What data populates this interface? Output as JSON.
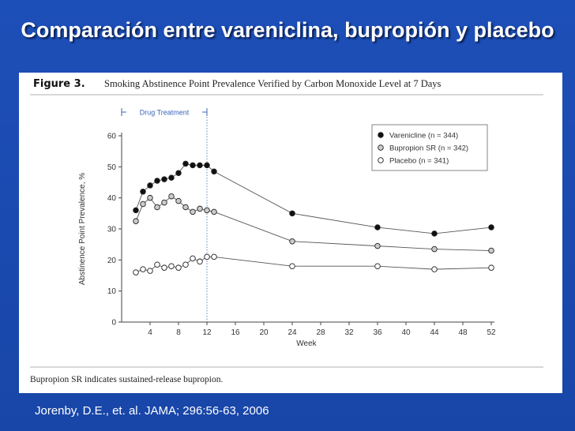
{
  "slide": {
    "title": "Comparación entre vareniclina, bupropión y placebo",
    "citation": "Jorenby, D.E., et. al.  JAMA; 296:56-63, 2006"
  },
  "figure": {
    "label": "Figure 3.",
    "footnote": "Bupropion SR indicates sustained-release bupropion."
  },
  "colors": {
    "slide_background": "#1a4bb0",
    "varenicline": "#111111",
    "bupropion": "#cccccc",
    "placebo": "#ffffff",
    "drug_treatment_annotation": "#3a66b8"
  },
  "chart_data": {
    "type": "line",
    "title": "Smoking Abstinence Point Prevalence Verified by Carbon Monoxide Level at 7 Days",
    "xlabel": "Week",
    "ylabel": "Abstinence Point Prevalence, %",
    "xlim": [
      0,
      52
    ],
    "ylim": [
      0,
      60
    ],
    "x_ticks": [
      4,
      8,
      12,
      16,
      20,
      24,
      28,
      32,
      36,
      40,
      44,
      48,
      52
    ],
    "y_ticks": [
      0,
      10,
      20,
      30,
      40,
      50,
      60
    ],
    "grid": false,
    "legend_position": "top-right",
    "annotation": {
      "label": "Drug Treatment",
      "x_start": 0,
      "x_end": 12
    },
    "series": [
      {
        "name": "Varenicline (n = 344)",
        "marker": "filled",
        "color": "#111111",
        "x": [
          2,
          3,
          4,
          5,
          6,
          7,
          8,
          9,
          10,
          11,
          12,
          13,
          24,
          36,
          44,
          52
        ],
        "y": [
          36,
          42,
          44,
          45.5,
          46,
          46.5,
          48,
          51,
          50.5,
          50.5,
          50.5,
          48.5,
          35,
          30.5,
          28.5,
          30.5
        ]
      },
      {
        "name": "Bupropion SR (n = 342)",
        "marker": "gray",
        "color": "#cccccc",
        "x": [
          2,
          3,
          4,
          5,
          6,
          7,
          8,
          9,
          10,
          11,
          12,
          13,
          24,
          36,
          44,
          52
        ],
        "y": [
          32.5,
          38,
          40,
          37,
          38.5,
          40.5,
          39,
          37,
          35.5,
          36.5,
          36,
          35.5,
          26,
          24.5,
          23.5,
          23
        ]
      },
      {
        "name": "Placebo (n = 341)",
        "marker": "open",
        "color": "#ffffff",
        "x": [
          2,
          3,
          4,
          5,
          6,
          7,
          8,
          9,
          10,
          11,
          12,
          13,
          24,
          36,
          44,
          52
        ],
        "y": [
          16,
          17,
          16.5,
          18.5,
          17.5,
          18,
          17.5,
          18.5,
          20.5,
          19.5,
          21,
          21,
          18,
          18,
          17,
          17.5
        ]
      }
    ]
  }
}
